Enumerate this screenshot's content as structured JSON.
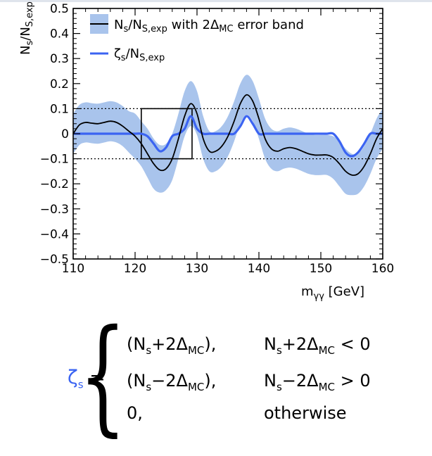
{
  "chart_data": {
    "type": "line",
    "xlabel": "m",
    "xlabel_sub": "γγ",
    "xlabel_unit": " [GeV]",
    "ylabel": "N",
    "ylabel_sub1": "s",
    "ylabel_mid": "/N",
    "ylabel_sub2": "S,exp",
    "xlim": [
      110,
      160
    ],
    "ylim": [
      -0.5,
      0.5
    ],
    "x_ticks": [
      "110",
      "120",
      "130",
      "140",
      "150",
      "160"
    ],
    "y_ticks": [
      "0.5",
      "0.4",
      "0.3",
      "0.2",
      "0.1",
      "0",
      "−0.1",
      "−0.2",
      "−0.3",
      "−0.4",
      "−0.5"
    ],
    "reference_lines": [
      0.1,
      -0.1
    ],
    "highlight_box": {
      "x": [
        121,
        129.2
      ],
      "y": [
        -0.1,
        0.1
      ]
    },
    "legend": {
      "placement": "top",
      "entries": [
        {
          "sym": "N",
          "sub1": "s",
          "mid": "/N",
          "sub2": "S,exp",
          "rest": " with 2Δ",
          "sub3": "MC",
          "tail": " error band"
        },
        {
          "sym": "ζ",
          "sub1": "s",
          "mid": "/N",
          "sub2": "S,exp"
        }
      ]
    },
    "series": [
      {
        "color": "#000000",
        "x": [
          110,
          111,
          112,
          113,
          114,
          115,
          116,
          117,
          118,
          119,
          120,
          121,
          122,
          123,
          124,
          125,
          126,
          127,
          128,
          129,
          130,
          131,
          132,
          133,
          134,
          135,
          136,
          137,
          138,
          139,
          140,
          141,
          142,
          143,
          144,
          145,
          146,
          147,
          148,
          149,
          150,
          151,
          152,
          153,
          154,
          155,
          156,
          157,
          158,
          159,
          160
        ],
        "y": [
          0.0,
          0.035,
          0.045,
          0.042,
          0.04,
          0.045,
          0.05,
          0.045,
          0.03,
          0.01,
          -0.01,
          -0.04,
          -0.08,
          -0.12,
          -0.145,
          -0.14,
          -0.1,
          -0.02,
          0.07,
          0.12,
          0.08,
          -0.02,
          -0.07,
          -0.07,
          -0.05,
          -0.01,
          0.05,
          0.12,
          0.155,
          0.13,
          0.06,
          -0.02,
          -0.06,
          -0.07,
          -0.06,
          -0.055,
          -0.06,
          -0.07,
          -0.08,
          -0.085,
          -0.085,
          -0.085,
          -0.095,
          -0.12,
          -0.15,
          -0.165,
          -0.16,
          -0.13,
          -0.08,
          -0.02,
          0.02
        ]
      },
      {
        "color": "#3b64f2",
        "x": [
          110,
          111,
          112,
          113,
          114,
          115,
          116,
          117,
          118,
          119,
          120,
          121,
          122,
          123,
          124,
          125,
          126,
          127,
          128,
          129,
          130,
          131,
          132,
          133,
          134,
          135,
          136,
          137,
          138,
          139,
          140,
          141,
          142,
          143,
          144,
          145,
          146,
          147,
          148,
          149,
          150,
          151,
          152,
          153,
          154,
          155,
          156,
          157,
          158,
          159,
          160
        ],
        "y": [
          0,
          0,
          0,
          0,
          0,
          0,
          0,
          0,
          0,
          0,
          0,
          0,
          -0.01,
          -0.04,
          -0.07,
          -0.055,
          -0.01,
          0,
          0.02,
          0.07,
          0.02,
          0,
          0,
          0,
          0,
          0,
          0,
          0.03,
          0.07,
          0.04,
          0,
          0,
          0,
          0,
          0,
          0,
          0,
          0,
          0,
          0,
          0,
          0,
          0,
          -0.03,
          -0.075,
          -0.09,
          -0.075,
          -0.04,
          0,
          0,
          0
        ]
      }
    ],
    "band": {
      "color": "#a9c4ec",
      "x": [
        110,
        111,
        112,
        113,
        114,
        115,
        116,
        117,
        118,
        119,
        120,
        121,
        122,
        123,
        124,
        125,
        126,
        127,
        128,
        129,
        130,
        131,
        132,
        133,
        134,
        135,
        136,
        137,
        138,
        139,
        140,
        141,
        142,
        143,
        144,
        145,
        146,
        147,
        148,
        149,
        150,
        151,
        152,
        153,
        154,
        155,
        156,
        157,
        158,
        159,
        160
      ],
      "lower": [
        -0.08,
        -0.045,
        -0.035,
        -0.038,
        -0.04,
        -0.035,
        -0.03,
        -0.035,
        -0.05,
        -0.075,
        -0.1,
        -0.13,
        -0.175,
        -0.22,
        -0.235,
        -0.225,
        -0.185,
        -0.1,
        -0.01,
        0.03,
        -0.005,
        -0.1,
        -0.15,
        -0.15,
        -0.13,
        -0.09,
        -0.03,
        0.04,
        0.075,
        0.05,
        -0.02,
        -0.1,
        -0.14,
        -0.15,
        -0.14,
        -0.135,
        -0.14,
        -0.15,
        -0.16,
        -0.165,
        -0.165,
        -0.165,
        -0.18,
        -0.21,
        -0.24,
        -0.245,
        -0.24,
        -0.21,
        -0.16,
        -0.1,
        -0.06
      ],
      "upper": [
        0.08,
        0.115,
        0.125,
        0.122,
        0.12,
        0.125,
        0.13,
        0.125,
        0.11,
        0.09,
        0.08,
        0.05,
        0.02,
        -0.02,
        -0.045,
        -0.04,
        0.0,
        0.08,
        0.17,
        0.21,
        0.17,
        0.07,
        0.01,
        0.01,
        0.03,
        0.07,
        0.13,
        0.2,
        0.235,
        0.21,
        0.14,
        0.06,
        0.02,
        0.01,
        0.02,
        0.025,
        0.02,
        0.01,
        0.0,
        -0.005,
        -0.005,
        -0.005,
        -0.01,
        -0.03,
        -0.06,
        -0.08,
        -0.08,
        -0.05,
        0.0,
        0.06,
        0.1
      ]
    }
  },
  "formula": {
    "lhs_sym": "ζ",
    "lhs_sub": "s",
    "eq": " =",
    "rows": [
      {
        "a": "(N",
        "a_sub": "s",
        "b": "+2Δ",
        "b_sub": "MC",
        "c": "),",
        "cond_a": "N",
        "cond_a_sub": "s",
        "cond_b": "+2Δ",
        "cond_b_sub": "MC",
        "cond_c": " < 0"
      },
      {
        "a": "(N",
        "a_sub": "s",
        "b": "−2Δ",
        "b_sub": "MC",
        "c": "),",
        "cond_a": "N",
        "cond_a_sub": "s",
        "cond_b": "−2Δ",
        "cond_b_sub": "MC",
        "cond_c": " > 0"
      },
      {
        "a": "0,",
        "cond_text": "otherwise"
      }
    ]
  }
}
